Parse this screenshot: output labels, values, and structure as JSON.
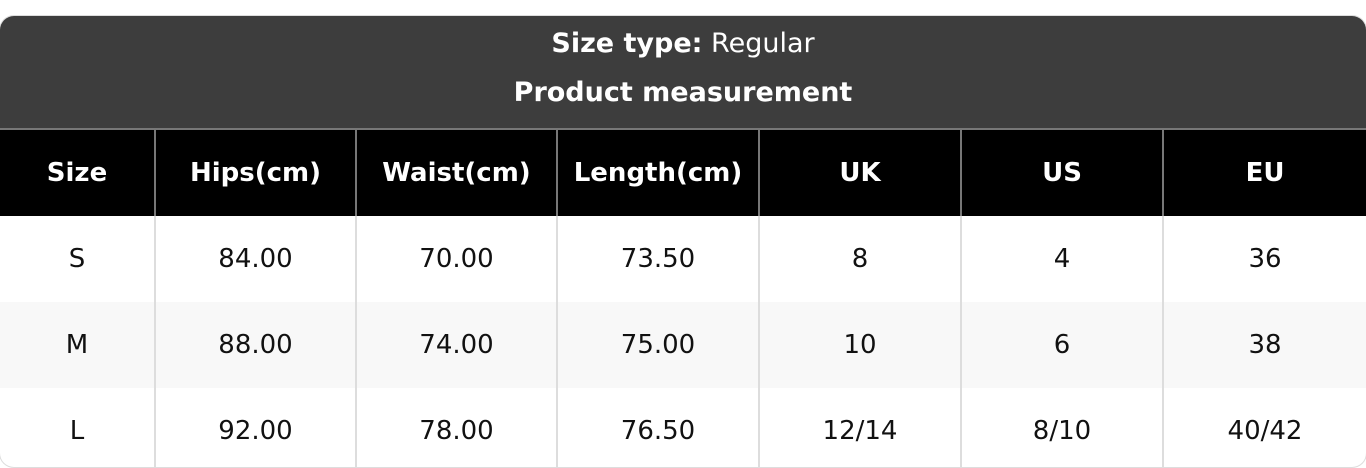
{
  "header": {
    "size_type_label": "Size type:",
    "size_type_value": "Regular",
    "subtitle": "Product measurement"
  },
  "table": {
    "columns": [
      "Size",
      "Hips(cm)",
      "Waist(cm)",
      "Length(cm)",
      "UK",
      "US",
      "EU"
    ],
    "rows": [
      [
        "S",
        "84.00",
        "70.00",
        "73.50",
        "8",
        "4",
        "36"
      ],
      [
        "M",
        "88.00",
        "74.00",
        "75.00",
        "10",
        "6",
        "38"
      ],
      [
        "L",
        "92.00",
        "78.00",
        "76.50",
        "12/14",
        "8/10",
        "40/42"
      ]
    ]
  },
  "colors": {
    "header_bg": "#3d3d3d",
    "column_header_bg": "#000000",
    "alt_row_bg": "#f8f8f8"
  }
}
